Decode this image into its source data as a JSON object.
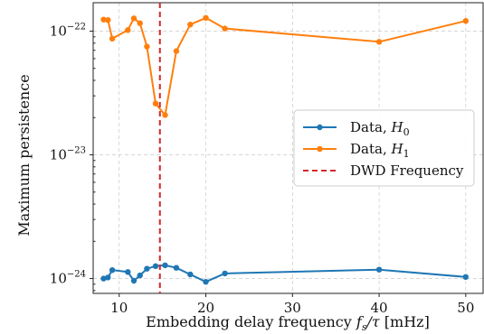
{
  "chart_data": {
    "type": "line",
    "xlabel": "Embedding delay frequency f_s/τ [mHz]",
    "ylabel": "Maximum persistence",
    "xlim": [
      7,
      52
    ],
    "ylim_log10": [
      -24.12,
      -21.77
    ],
    "yscale": "log",
    "x_ticks": [
      10,
      20,
      30,
      40,
      50
    ],
    "x_tick_labels": [
      "10",
      "20",
      "30",
      "40",
      "50"
    ],
    "y_ticks_log10": [
      -24,
      -23,
      -22
    ],
    "grid": true,
    "legend_position": "right",
    "series": [
      {
        "name": "Data, H0",
        "color": "#1f77b4",
        "x": [
          8.2,
          8.7,
          9.2,
          11.0,
          11.7,
          12.4,
          13.2,
          14.2,
          15.3,
          16.6,
          18.2,
          20.0,
          22.2,
          40.0,
          50.0
        ],
        "y": [
          1e-24,
          1.02e-24,
          1.17e-24,
          1.13e-24,
          9.6e-25,
          1.06e-24,
          1.2e-24,
          1.26e-24,
          1.28e-24,
          1.22e-24,
          1.08e-24,
          9.4e-25,
          1.1e-24,
          1.18e-24,
          1.03e-24
        ]
      },
      {
        "name": "Data, H1",
        "color": "#ff7f0e",
        "x": [
          8.2,
          8.7,
          9.2,
          11.0,
          11.7,
          12.4,
          13.2,
          14.2,
          15.3,
          16.6,
          18.2,
          20.0,
          22.2,
          40.0,
          50.0
        ],
        "y": [
          1.24e-22,
          1.23e-22,
          8.7e-23,
          1.02e-22,
          1.27e-22,
          1.16e-22,
          7.5e-23,
          2.6e-23,
          2.1e-23,
          6.9e-23,
          1.13e-22,
          1.28e-22,
          1.05e-22,
          8.2e-23,
          1.21e-22
        ]
      }
    ],
    "vline": {
      "name": "DWD Frequency",
      "x": 14.7,
      "color": "#d62728",
      "style": "dashed"
    }
  },
  "legend": {
    "h0_label": "Data, ",
    "h0_symbol": "H",
    "h0_sub": "0",
    "h1_label": "Data, ",
    "h1_symbol": "H",
    "h1_sub": "1",
    "dwd_label": "DWD Frequency"
  },
  "axes": {
    "x_label_prefix": "Embedding delay frequency ",
    "x_label_math_f": "f",
    "x_label_math_s": "s",
    "x_label_math_tau": "/τ",
    "x_label_unit": " [mHz]",
    "y_label": "Maximum persistence"
  }
}
